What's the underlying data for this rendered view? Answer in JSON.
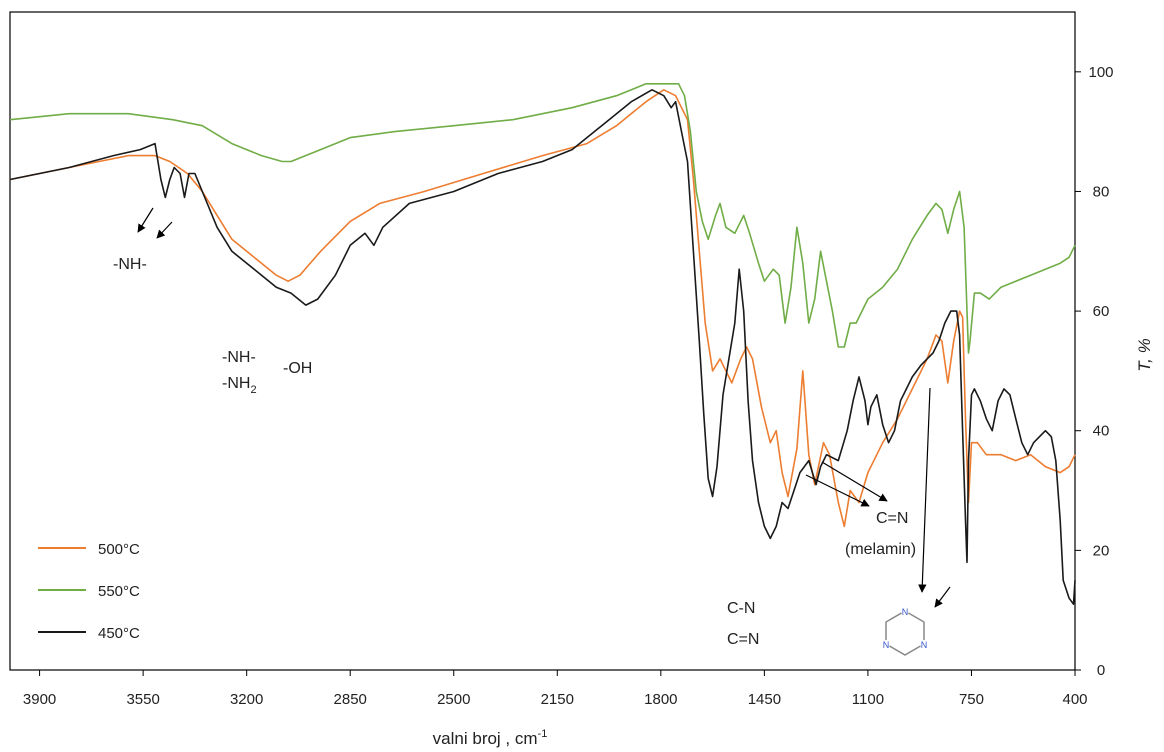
{
  "chart_data": {
    "type": "line",
    "xlabel": "valni broj , cm",
    "xlabel_sup": "-1",
    "ylabel": "T, %",
    "xlim": [
      4000,
      400
    ],
    "ylim": [
      0,
      110
    ],
    "x_ticks": [
      3900,
      3550,
      3200,
      2850,
      2500,
      2150,
      1800,
      1450,
      1100,
      750,
      400
    ],
    "y_ticks": [
      0,
      20,
      40,
      60,
      80,
      100
    ],
    "y_axis_side": "right",
    "grid": false,
    "legend_position": "bottom-left",
    "series": [
      {
        "name": "500°C",
        "color": "#ED7D31",
        "points": [
          [
            4000,
            82
          ],
          [
            3800,
            84
          ],
          [
            3600,
            86
          ],
          [
            3510,
            86
          ],
          [
            3460,
            85
          ],
          [
            3400,
            83
          ],
          [
            3350,
            80
          ],
          [
            3300,
            76
          ],
          [
            3250,
            72
          ],
          [
            3200,
            70
          ],
          [
            3150,
            68
          ],
          [
            3100,
            66
          ],
          [
            3060,
            65
          ],
          [
            3020,
            66
          ],
          [
            2950,
            70
          ],
          [
            2850,
            75
          ],
          [
            2750,
            78
          ],
          [
            2600,
            80
          ],
          [
            2400,
            83
          ],
          [
            2200,
            86
          ],
          [
            2050,
            88
          ],
          [
            1950,
            91
          ],
          [
            1850,
            95
          ],
          [
            1790,
            97
          ],
          [
            1750,
            96
          ],
          [
            1710,
            92
          ],
          [
            1690,
            82
          ],
          [
            1670,
            70
          ],
          [
            1650,
            58
          ],
          [
            1625,
            50
          ],
          [
            1600,
            52
          ],
          [
            1560,
            48
          ],
          [
            1530,
            52
          ],
          [
            1510,
            54
          ],
          [
            1490,
            52
          ],
          [
            1460,
            44
          ],
          [
            1430,
            38
          ],
          [
            1410,
            40
          ],
          [
            1390,
            33
          ],
          [
            1370,
            29
          ],
          [
            1340,
            37
          ],
          [
            1320,
            50
          ],
          [
            1300,
            36
          ],
          [
            1280,
            31
          ],
          [
            1250,
            38
          ],
          [
            1230,
            36
          ],
          [
            1200,
            28
          ],
          [
            1180,
            24
          ],
          [
            1160,
            30
          ],
          [
            1130,
            28
          ],
          [
            1100,
            33
          ],
          [
            1050,
            38
          ],
          [
            1000,
            42
          ],
          [
            950,
            47
          ],
          [
            900,
            52
          ],
          [
            870,
            56
          ],
          [
            850,
            55
          ],
          [
            830,
            48
          ],
          [
            810,
            55
          ],
          [
            790,
            60
          ],
          [
            780,
            59
          ],
          [
            770,
            42
          ],
          [
            760,
            28
          ],
          [
            750,
            38
          ],
          [
            730,
            38
          ],
          [
            700,
            36
          ],
          [
            650,
            36
          ],
          [
            600,
            35
          ],
          [
            550,
            36
          ],
          [
            500,
            34
          ],
          [
            450,
            33
          ],
          [
            420,
            34
          ],
          [
            400,
            36
          ]
        ]
      },
      {
        "name": "550°C",
        "color": "#70AD47",
        "points": [
          [
            4000,
            92
          ],
          [
            3800,
            93
          ],
          [
            3600,
            93
          ],
          [
            3450,
            92
          ],
          [
            3350,
            91
          ],
          [
            3250,
            88
          ],
          [
            3150,
            86
          ],
          [
            3080,
            85
          ],
          [
            3050,
            85
          ],
          [
            2950,
            87
          ],
          [
            2850,
            89
          ],
          [
            2700,
            90
          ],
          [
            2500,
            91
          ],
          [
            2300,
            92
          ],
          [
            2200,
            93
          ],
          [
            2100,
            94
          ],
          [
            1950,
            96
          ],
          [
            1850,
            98
          ],
          [
            1800,
            98
          ],
          [
            1760,
            98
          ],
          [
            1740,
            98
          ],
          [
            1720,
            96
          ],
          [
            1700,
            90
          ],
          [
            1680,
            80
          ],
          [
            1660,
            75
          ],
          [
            1640,
            72
          ],
          [
            1615,
            76
          ],
          [
            1600,
            78
          ],
          [
            1580,
            74
          ],
          [
            1550,
            73
          ],
          [
            1520,
            76
          ],
          [
            1500,
            73
          ],
          [
            1470,
            68
          ],
          [
            1450,
            65
          ],
          [
            1420,
            67
          ],
          [
            1400,
            66
          ],
          [
            1380,
            58
          ],
          [
            1360,
            64
          ],
          [
            1340,
            74
          ],
          [
            1320,
            68
          ],
          [
            1300,
            58
          ],
          [
            1280,
            62
          ],
          [
            1260,
            70
          ],
          [
            1240,
            65
          ],
          [
            1220,
            60
          ],
          [
            1200,
            54
          ],
          [
            1180,
            54
          ],
          [
            1160,
            58
          ],
          [
            1140,
            58
          ],
          [
            1100,
            62
          ],
          [
            1050,
            64
          ],
          [
            1000,
            67
          ],
          [
            950,
            72
          ],
          [
            900,
            76
          ],
          [
            870,
            78
          ],
          [
            850,
            77
          ],
          [
            830,
            73
          ],
          [
            810,
            77
          ],
          [
            790,
            80
          ],
          [
            775,
            74
          ],
          [
            765,
            60
          ],
          [
            760,
            53
          ],
          [
            755,
            55
          ],
          [
            740,
            63
          ],
          [
            720,
            63
          ],
          [
            690,
            62
          ],
          [
            650,
            64
          ],
          [
            600,
            65
          ],
          [
            550,
            66
          ],
          [
            500,
            67
          ],
          [
            450,
            68
          ],
          [
            420,
            69
          ],
          [
            400,
            71
          ]
        ]
      },
      {
        "name": "450°C",
        "color": "#1a1a1a",
        "points": [
          [
            4000,
            82
          ],
          [
            3800,
            84
          ],
          [
            3650,
            86
          ],
          [
            3560,
            87
          ],
          [
            3510,
            88
          ],
          [
            3490,
            82
          ],
          [
            3475,
            79
          ],
          [
            3460,
            82
          ],
          [
            3445,
            84
          ],
          [
            3425,
            83
          ],
          [
            3410,
            79
          ],
          [
            3395,
            83
          ],
          [
            3375,
            83
          ],
          [
            3350,
            80
          ],
          [
            3300,
            74
          ],
          [
            3250,
            70
          ],
          [
            3200,
            68
          ],
          [
            3150,
            66
          ],
          [
            3100,
            64
          ],
          [
            3050,
            63
          ],
          [
            3000,
            61
          ],
          [
            2960,
            62
          ],
          [
            2900,
            66
          ],
          [
            2850,
            71
          ],
          [
            2800,
            73
          ],
          [
            2770,
            71
          ],
          [
            2740,
            74
          ],
          [
            2650,
            78
          ],
          [
            2500,
            80
          ],
          [
            2350,
            83
          ],
          [
            2200,
            85
          ],
          [
            2100,
            87
          ],
          [
            2000,
            91
          ],
          [
            1950,
            93
          ],
          [
            1900,
            95
          ],
          [
            1830,
            97
          ],
          [
            1790,
            96
          ],
          [
            1765,
            94
          ],
          [
            1750,
            95
          ],
          [
            1730,
            90
          ],
          [
            1710,
            85
          ],
          [
            1690,
            70
          ],
          [
            1670,
            55
          ],
          [
            1655,
            43
          ],
          [
            1640,
            32
          ],
          [
            1625,
            29
          ],
          [
            1610,
            34
          ],
          [
            1590,
            46
          ],
          [
            1570,
            52
          ],
          [
            1550,
            58
          ],
          [
            1535,
            67
          ],
          [
            1520,
            60
          ],
          [
            1505,
            45
          ],
          [
            1490,
            35
          ],
          [
            1470,
            28
          ],
          [
            1450,
            24
          ],
          [
            1430,
            22
          ],
          [
            1410,
            24
          ],
          [
            1390,
            28
          ],
          [
            1370,
            27
          ],
          [
            1350,
            30
          ],
          [
            1330,
            33
          ],
          [
            1300,
            35
          ],
          [
            1275,
            31
          ],
          [
            1260,
            34
          ],
          [
            1240,
            36
          ],
          [
            1200,
            35
          ],
          [
            1170,
            40
          ],
          [
            1150,
            45
          ],
          [
            1130,
            49
          ],
          [
            1110,
            45
          ],
          [
            1100,
            41
          ],
          [
            1090,
            44
          ],
          [
            1070,
            46
          ],
          [
            1050,
            41
          ],
          [
            1030,
            38
          ],
          [
            1010,
            40
          ],
          [
            990,
            45
          ],
          [
            970,
            47
          ],
          [
            950,
            49
          ],
          [
            920,
            51
          ],
          [
            900,
            52
          ],
          [
            880,
            53
          ],
          [
            860,
            55
          ],
          [
            840,
            58
          ],
          [
            820,
            60
          ],
          [
            800,
            60
          ],
          [
            790,
            56
          ],
          [
            780,
            40
          ],
          [
            770,
            25
          ],
          [
            765,
            18
          ],
          [
            760,
            35
          ],
          [
            750,
            46
          ],
          [
            740,
            47
          ],
          [
            720,
            45
          ],
          [
            700,
            42
          ],
          [
            680,
            40
          ],
          [
            660,
            45
          ],
          [
            640,
            47
          ],
          [
            620,
            46
          ],
          [
            600,
            42
          ],
          [
            580,
            38
          ],
          [
            560,
            36
          ],
          [
            540,
            38
          ],
          [
            520,
            39
          ],
          [
            500,
            40
          ],
          [
            480,
            39
          ],
          [
            465,
            35
          ],
          [
            450,
            25
          ],
          [
            440,
            15
          ],
          [
            420,
            12
          ],
          [
            405,
            11
          ],
          [
            400,
            15
          ]
        ]
      }
    ],
    "annotations": {
      "nh1": "-NH-",
      "nh2": "-NH-",
      "nh2b_main": "-NH",
      "nh2b_sub": "2",
      "oh": "-OH",
      "cn1": "C-N",
      "cn2": "C=N",
      "cn3": "C=N",
      "melamin": "(melamin)"
    }
  }
}
